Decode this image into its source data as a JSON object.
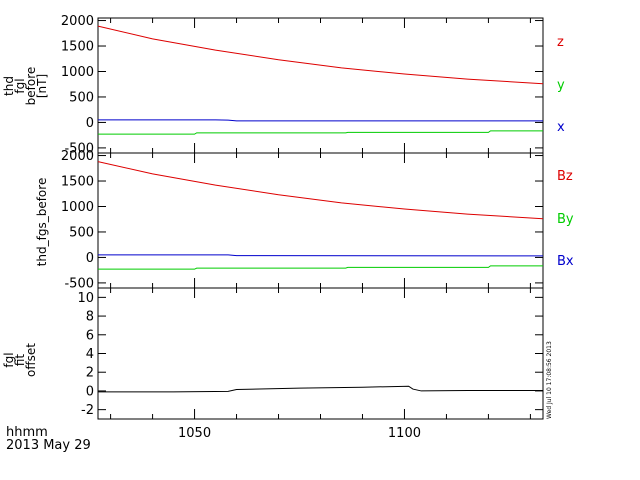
{
  "chart_data": [
    {
      "type": "line",
      "ylabel_lines": [
        "thd",
        "fgl",
        "before",
        "[nT]"
      ],
      "xlim": [
        1027,
        1133
      ],
      "ylim": [
        -600,
        2050
      ],
      "yticks": [
        -500,
        0,
        500,
        1000,
        1500,
        2000
      ],
      "ytick_labels": [
        "-500",
        "0",
        "500",
        "1000",
        "1500",
        "2000"
      ],
      "series": [
        {
          "name": "z",
          "color": "#dd0000",
          "x": [
            1027,
            1040,
            1055,
            1070,
            1085,
            1100,
            1115,
            1133
          ],
          "values": [
            1890,
            1640,
            1420,
            1230,
            1070,
            950,
            850,
            760
          ]
        },
        {
          "name": "y",
          "color": "#00cc00",
          "x": [
            1027,
            1050,
            1050.5,
            1086,
            1086.5,
            1120,
            1120.5,
            1133
          ],
          "values": [
            -230,
            -230,
            -205,
            -205,
            -195,
            -195,
            -165,
            -165
          ]
        },
        {
          "name": "x",
          "color": "#0000cc",
          "x": [
            1027,
            1055,
            1058,
            1060,
            1133
          ],
          "values": [
            50,
            50,
            45,
            30,
            30
          ]
        }
      ],
      "legend_placement": "right"
    },
    {
      "type": "line",
      "ylabel_lines": [
        "thd_fgs_before"
      ],
      "xlim": [
        1027,
        1133
      ],
      "ylim": [
        -600,
        2050
      ],
      "yticks": [
        -500,
        0,
        500,
        1000,
        1500,
        2000
      ],
      "ytick_labels": [
        "-500",
        "0",
        "500",
        "1000",
        "1500",
        "2000"
      ],
      "series": [
        {
          "name": "Bz",
          "color": "#dd0000",
          "x": [
            1027,
            1040,
            1055,
            1070,
            1085,
            1100,
            1115,
            1133
          ],
          "values": [
            1880,
            1640,
            1420,
            1230,
            1070,
            950,
            850,
            760
          ]
        },
        {
          "name": "By",
          "color": "#00cc00",
          "x": [
            1027,
            1050,
            1050.5,
            1086,
            1086.5,
            1120,
            1120.5,
            1133
          ],
          "values": [
            -230,
            -230,
            -210,
            -210,
            -195,
            -195,
            -165,
            -165
          ]
        },
        {
          "name": "Bx",
          "color": "#0000cc",
          "x": [
            1027,
            1058,
            1060,
            1133
          ],
          "values": [
            50,
            50,
            35,
            30
          ]
        }
      ],
      "legend_placement": "right"
    },
    {
      "type": "line",
      "ylabel_lines": [
        "fgl",
        "fit",
        "offset"
      ],
      "xlim": [
        1027,
        1133
      ],
      "ylim": [
        -3,
        11
      ],
      "yticks": [
        -2,
        0,
        2,
        4,
        6,
        8,
        10
      ],
      "ytick_labels": [
        "-2",
        "0",
        "2",
        "4",
        "6",
        "8",
        "10"
      ],
      "series": [
        {
          "name": "",
          "color": "#000000",
          "x": [
            1027,
            1045,
            1058,
            1060,
            1075,
            1090,
            1101,
            1102,
            1104,
            1115,
            1133
          ],
          "values": [
            -0.1,
            -0.1,
            -0.05,
            0.15,
            0.3,
            0.4,
            0.5,
            0.2,
            0.0,
            0.05,
            0.05
          ]
        }
      ],
      "legend_placement": "none"
    }
  ],
  "x_axis": {
    "ticks": [
      1050,
      1100
    ],
    "tick_labels": [
      "1050",
      "1100"
    ],
    "label_line1": "hhmm",
    "label_line2": "2013 May 29"
  },
  "timestamp": "Wed Jul 10 17:08:56 2013",
  "colors": {
    "z": "#dd0000",
    "y": "#00cc00",
    "x": "#0000cc",
    "axes": "#000000"
  }
}
